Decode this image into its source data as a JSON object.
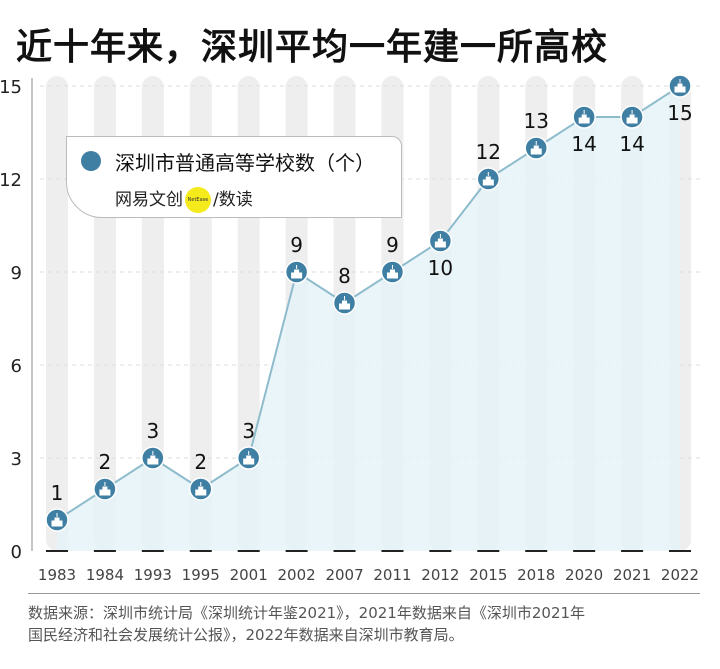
{
  "title": "近十年来，深圳平均一年建一所高校",
  "legend": {
    "label": "深圳市普通高等学校数（个）",
    "brand_left": "网易文创",
    "brand_logo": "NetEase",
    "brand_sep": "/",
    "brand_right": "数读"
  },
  "source": {
    "line1": "数据来源：深圳市统计局《深圳统计年鉴2021》，2021年数据来自《深圳市2021年",
    "line2": "国民经济和社会发展统计公报》，2022年数据来自深圳市教育局。"
  },
  "colors": {
    "point": "#3f7fa3",
    "line": "#8fbccd",
    "area": "#e4f2f7",
    "bar": "#eeeeee"
  },
  "chart_data": {
    "type": "line",
    "categories": [
      "1983",
      "1984",
      "1993",
      "1995",
      "2001",
      "2002",
      "2007",
      "2011",
      "2012",
      "2015",
      "2018",
      "2020",
      "2021",
      "2022"
    ],
    "values": [
      1,
      2,
      3,
      2,
      3,
      9,
      8,
      9,
      10,
      12,
      13,
      14,
      14,
      15
    ],
    "label_position": [
      "above",
      "above",
      "above",
      "above",
      "above",
      "above",
      "above",
      "above",
      "below",
      "above",
      "above",
      "below",
      "below",
      "below"
    ],
    "ylim": [
      0,
      15
    ],
    "yticks": [
      0,
      3,
      6,
      9,
      12,
      15
    ],
    "grid": true,
    "marker_icon": "school-building-icon"
  }
}
